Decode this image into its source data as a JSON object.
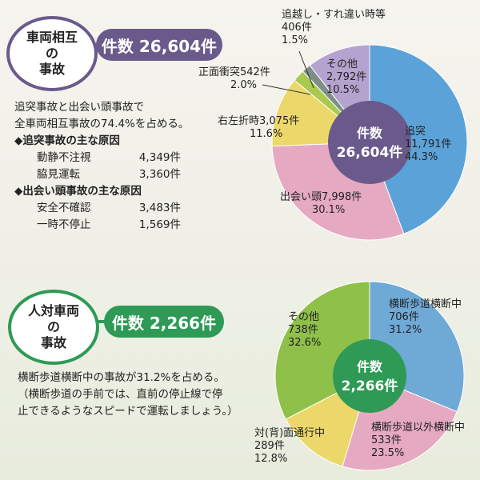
{
  "section1": {
    "title_line1": "車両相互",
    "title_line2": "の",
    "title_line3": "事故",
    "count_label": "件数 26,604件",
    "summary_line1": "追突事故と出会い頭事故で",
    "summary_line2": "全車両相互事故の74.4%を占める。",
    "rear_end_causes_title": "◆追突事故の主な原因",
    "rear_end_causes": [
      {
        "name": "動静不注視",
        "value": "4,349件"
      },
      {
        "name": "脇見運転",
        "value": "3,360件"
      }
    ],
    "crossing_causes_title": "◆出会い頭事故の主な原因",
    "crossing_causes": [
      {
        "name": "安全不確認",
        "value": "3,483件"
      },
      {
        "name": "一時不停止",
        "value": "1,569件"
      }
    ]
  },
  "section2": {
    "title_line1": "人対車両",
    "title_line2": "の",
    "title_line3": "事故",
    "count_label": "件数 2,266件",
    "summary_line1": "横断歩道横断中の事故が31.2%を占める。",
    "summary_line2": "（横断歩道の手前では、直前の停止線で停",
    "summary_line3": "止できるようなスピードで運転しましょう。）"
  },
  "chart_data": [
    {
      "type": "pie",
      "center_label_line1": "件数",
      "center_label_line2": "26,604件",
      "slices": [
        {
          "name": "追突",
          "count": "11,791件",
          "pct_label": "44.3%",
          "value": 44.3,
          "color": "#5ba2d8"
        },
        {
          "name": "出会い頭",
          "count": "7,998件",
          "pct_label": "30.1%",
          "value": 30.1,
          "color": "#e6a9c2"
        },
        {
          "name": "右左折時",
          "count": "3,075件",
          "pct_label": "11.6%",
          "value": 11.6,
          "color": "#ecd86a"
        },
        {
          "name": "正面衝突",
          "count": "542件",
          "pct_label": "2.0%",
          "value": 2.0,
          "color": "#a9c94f"
        },
        {
          "name": "追越し・すれ違い時等",
          "count": "406件",
          "pct_label": "1.5%",
          "value": 1.5,
          "color": "#7d8f86"
        },
        {
          "name": "その他",
          "count": "2,792件",
          "pct_label": "10.5%",
          "value": 10.5,
          "color": "#b5a3cf"
        }
      ]
    },
    {
      "type": "pie",
      "center_label_line1": "件数",
      "center_label_line2": "2,266件",
      "slices": [
        {
          "name": "横断歩道横断中",
          "count": "706件",
          "pct_label": "31.2%",
          "value": 31.2,
          "color": "#6fa9d6"
        },
        {
          "name": "横断歩道以外横断中",
          "count": "533件",
          "pct_label": "23.5%",
          "value": 23.5,
          "color": "#e6a9c2"
        },
        {
          "name": "対(背)面通行中",
          "count": "289件",
          "pct_label": "12.8%",
          "value": 12.8,
          "color": "#ecd86a"
        },
        {
          "name": "その他",
          "count": "738件",
          "pct_label": "32.6%",
          "value": 32.6,
          "color": "#8fc04a"
        }
      ]
    }
  ]
}
